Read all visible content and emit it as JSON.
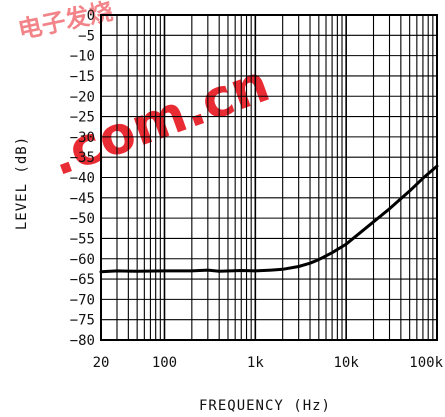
{
  "watermark": {
    "text": ".com.cn",
    "glyphs": "电子发烧",
    "color": "#e8202a"
  },
  "chart_data": {
    "type": "line",
    "xlabel": "FREQUENCY (Hz)",
    "ylabel": "LEVEL (dB)",
    "x_scale": "log",
    "xlim": [
      20,
      100000
    ],
    "ylim": [
      -80,
      0
    ],
    "grid": true,
    "x_tick_labels": [
      {
        "value": 20,
        "label": "20"
      },
      {
        "value": 100,
        "label": "100"
      },
      {
        "value": 1000,
        "label": "1k"
      },
      {
        "value": 10000,
        "label": "10k"
      },
      {
        "value": 100000,
        "label": "100k"
      }
    ],
    "y_ticks": [
      {
        "value": 0,
        "label": "0"
      },
      {
        "value": -5,
        "label": "−5"
      },
      {
        "value": -10,
        "label": "−10"
      },
      {
        "value": -15,
        "label": "−15"
      },
      {
        "value": -20,
        "label": "−20"
      },
      {
        "value": -25,
        "label": "−25"
      },
      {
        "value": -30,
        "label": "−30"
      },
      {
        "value": -35,
        "label": "−35"
      },
      {
        "value": -40,
        "label": "−40"
      },
      {
        "value": -45,
        "label": "−45"
      },
      {
        "value": -50,
        "label": "−50"
      },
      {
        "value": -55,
        "label": "−55"
      },
      {
        "value": -60,
        "label": "−60"
      },
      {
        "value": -65,
        "label": "−65"
      },
      {
        "value": -70,
        "label": "−70"
      },
      {
        "value": -75,
        "label": "−75"
      },
      {
        "value": -80,
        "label": "−80"
      }
    ],
    "series": [
      {
        "line_color": "#000000",
        "points": [
          [
            20,
            -63.2
          ],
          [
            30,
            -63.0
          ],
          [
            50,
            -63.1
          ],
          [
            100,
            -63.0
          ],
          [
            200,
            -63.0
          ],
          [
            300,
            -62.8
          ],
          [
            400,
            -63.1
          ],
          [
            700,
            -62.9
          ],
          [
            1000,
            -63.0
          ],
          [
            1500,
            -62.8
          ],
          [
            2000,
            -62.6
          ],
          [
            3000,
            -61.9
          ],
          [
            4000,
            -61.1
          ],
          [
            5000,
            -60.2
          ],
          [
            7000,
            -58.5
          ],
          [
            10000,
            -56.4
          ],
          [
            15000,
            -53.2
          ],
          [
            20000,
            -50.9
          ],
          [
            30000,
            -47.7
          ],
          [
            50000,
            -43.3
          ],
          [
            70000,
            -40.2
          ],
          [
            100000,
            -37.2
          ]
        ]
      }
    ]
  }
}
